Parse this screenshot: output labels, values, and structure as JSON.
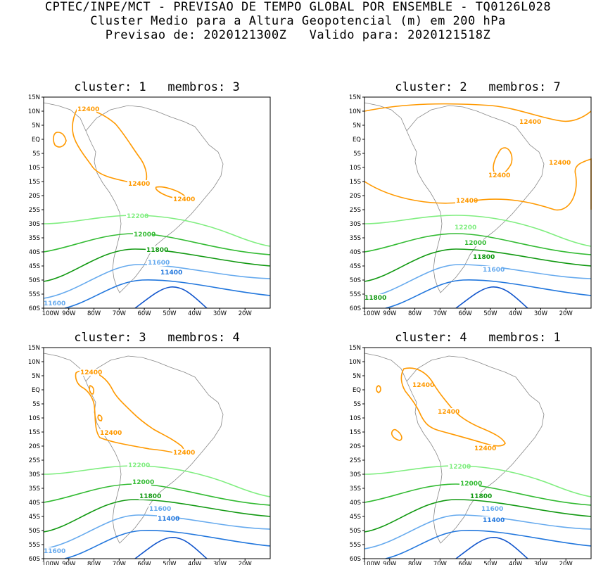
{
  "header": {
    "line1": "CPTEC/INPE/MCT - PREVISAO DE TEMPO GLOBAL POR ENSEMBLE - TQ0126L028",
    "line2": "Cluster Medio para a Altura Geopotencial (m) em 200 hPa",
    "line3": "Previsao de: 2020121300Z   Valido para: 2020121518Z"
  },
  "axes": {
    "lat_labels": [
      "15N",
      "10N",
      "5N",
      "EQ",
      "5S",
      "10S",
      "15S",
      "20S",
      "25S",
      "30S",
      "35S",
      "40S",
      "45S",
      "50S",
      "55S",
      "60S"
    ],
    "lon_labels": [
      "100W",
      "90W",
      "80W",
      "70W",
      "60W",
      "50W",
      "40W",
      "30W",
      "20W"
    ]
  },
  "colors": {
    "c12400": "#ff9900",
    "c12200": "#80ee80",
    "c12000": "#33bb33",
    "c11800": "#119911",
    "c11600": "#66aaee",
    "c11400": "#2277dd",
    "c11200": "#1155cc",
    "land": "#888888"
  },
  "panels": [
    {
      "title": "cluster: 1   membros: 3",
      "labels": {
        "l12400a": "12400",
        "l12400b": "12400",
        "l12400c": "12400",
        "l12200": "12200",
        "l12000": "12000",
        "l11800": "11800",
        "l11600": "11600",
        "l11600b": "11600",
        "l11400": "11400"
      }
    },
    {
      "title": "cluster: 2   membros: 7",
      "labels": {
        "l12400a": "12400",
        "l12400b": "12400",
        "l12400c": "12400",
        "l12400d": "12400",
        "l12200": "12200",
        "l12000": "12000",
        "l11800": "11800",
        "l11800b": "11800",
        "l11600": "11600"
      }
    },
    {
      "title": "cluster: 3   membros: 4",
      "labels": {
        "l12400a": "12400",
        "l12400b": "12400",
        "l12400c": "12400",
        "l12200": "12200",
        "l12000": "12000",
        "l11800": "11800",
        "l11600": "11600",
        "l11600b": "11600",
        "l11400": "11400"
      }
    },
    {
      "title": "cluster: 4   membros: 1",
      "labels": {
        "l12400a": "12400",
        "l12400b": "12400",
        "l12400c": "12400",
        "l12200": "12200",
        "l12000": "12000",
        "l11800": "11800",
        "l11600": "11600",
        "l11400": "11400"
      }
    }
  ]
}
